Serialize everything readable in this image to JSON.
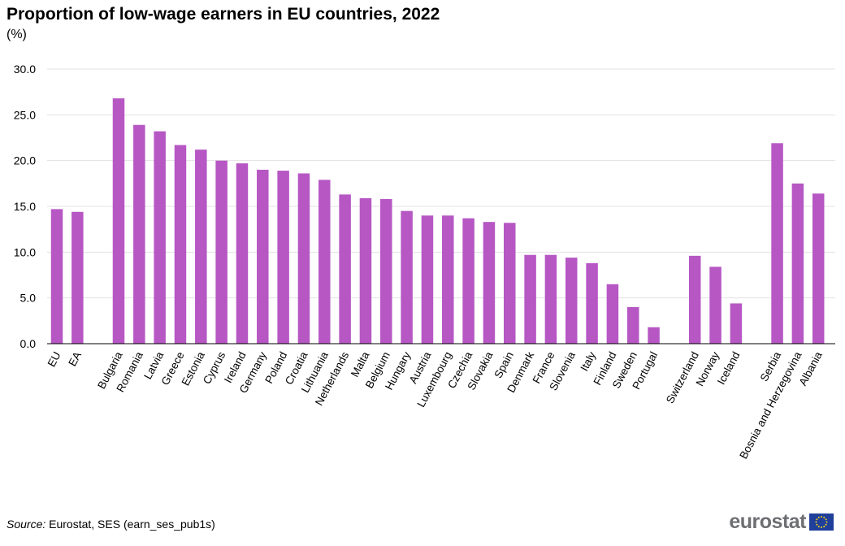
{
  "chart_data": {
    "type": "bar",
    "title": "Proportion of low-wage earners in EU countries, 2022",
    "subtitle": "(%)",
    "xlabel": "",
    "ylabel": "",
    "ylim": [
      0,
      30
    ],
    "yticks": [
      "0.0",
      "5.0",
      "10.0",
      "15.0",
      "20.0",
      "25.0",
      "30.0"
    ],
    "grid": true,
    "bar_color": "#b657c4",
    "groups": [
      {
        "categories": [
          "EU",
          "EA"
        ],
        "values": [
          14.7,
          14.4
        ]
      },
      {
        "categories": [
          "Bulgaria",
          "Romania",
          "Latvia",
          "Greece",
          "Estonia",
          "Cyprus",
          "Ireland",
          "Germany",
          "Poland",
          "Croatia",
          "Lithuania",
          "Netherlands",
          "Malta",
          "Belgium",
          "Hungary",
          "Austria",
          "Luxembourg",
          "Czechia",
          "Slovakia",
          "Spain",
          "Denmark",
          "France",
          "Slovenia",
          "Italy",
          "Finland",
          "Sweden",
          "Portugal"
        ],
        "values": [
          26.8,
          23.9,
          23.2,
          21.7,
          21.2,
          20.0,
          19.7,
          19.0,
          18.9,
          18.6,
          17.9,
          16.3,
          15.9,
          15.8,
          14.5,
          14.0,
          14.0,
          13.7,
          13.3,
          13.2,
          9.7,
          9.7,
          9.4,
          8.8,
          6.5,
          4.0,
          1.8
        ]
      },
      {
        "categories": [
          "Switzerland",
          "Norway",
          "Iceland"
        ],
        "values": [
          9.6,
          8.4,
          4.4
        ]
      },
      {
        "categories": [
          "Serbia",
          "Bosnia and Herzegovina",
          "Albania"
        ],
        "values": [
          21.9,
          17.5,
          16.4
        ]
      }
    ]
  },
  "footer": {
    "source_label": "Source:",
    "source_text": " Eurostat, SES (earn_ses_pub1s)",
    "brand": "eurostat"
  }
}
